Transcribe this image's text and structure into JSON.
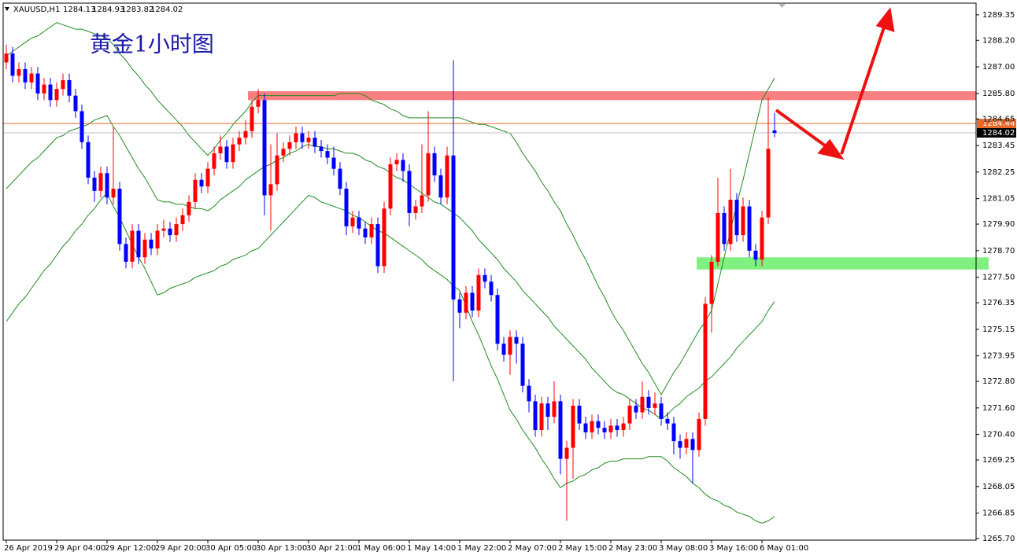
{
  "chart_data": {
    "type": "candlestick",
    "symbol": "XAUUSD,H1",
    "title": "黄金1小时图",
    "up_color": "#ff0000",
    "down_color": "#0000ff",
    "categories": [
      "26 Apr 2019",
      null,
      null,
      null,
      null,
      null,
      null,
      null,
      "29 Apr 04:00",
      null,
      null,
      null,
      null,
      null,
      null,
      null,
      "29 Apr 12:00",
      null,
      null,
      null,
      null,
      null,
      null,
      null,
      "29 Apr 20:00",
      null,
      null,
      null,
      null,
      null,
      null,
      null,
      "30 Apr 05:00",
      null,
      null,
      null,
      null,
      null,
      null,
      null,
      "30 Apr 13:00",
      null,
      null,
      null,
      null,
      null,
      null,
      null,
      "30 Apr 21:00",
      null,
      null,
      null,
      null,
      null,
      null,
      null,
      "1 May 06:00",
      null,
      null,
      null,
      null,
      null,
      null,
      null,
      "1 May 14:00",
      null,
      null,
      null,
      null,
      null,
      null,
      null,
      "1 May 22:00",
      null,
      null,
      null,
      null,
      null,
      null,
      null,
      "2 May 07:00",
      null,
      null,
      null,
      null,
      null,
      null,
      null,
      "2 May 15:00",
      null,
      null,
      null,
      null,
      null,
      null,
      null,
      "2 May 23:00",
      null,
      null,
      null,
      null,
      null,
      null,
      null,
      "3 May 08:00",
      null,
      null,
      null,
      null,
      null,
      null,
      null,
      "3 May 16:00",
      null,
      null,
      null,
      null,
      null,
      null,
      null,
      "6 May 01:00",
      null,
      null
    ],
    "open": [
      1287.2,
      1287.6,
      1286.6,
      1286.9,
      1286.3,
      1286.7,
      1285.8,
      1286.2,
      1285.5,
      1286.0,
      1286.4,
      1285.7,
      1285.0,
      1283.6,
      1282.0,
      1281.4,
      1282.2,
      1281.1,
      1281.5,
      1279.0,
      1278.2,
      1279.6,
      1278.4,
      1279.2,
      1278.8,
      1279.6,
      1279.7,
      1279.4,
      1279.9,
      1280.3,
      1280.9,
      1281.9,
      1281.6,
      1282.4,
      1283.1,
      1283.4,
      1282.7,
      1283.5,
      1283.8,
      1284.1,
      1285.2,
      1285.5,
      1281.2,
      1281.7,
      1283.0,
      1283.3,
      1283.6,
      1284.0,
      1283.6,
      1283.8,
      1283.4,
      1283.2,
      1282.9,
      1282.4,
      1281.5,
      1279.8,
      1280.2,
      1279.7,
      1279.3,
      1279.9,
      1278.0,
      1280.6,
      1282.6,
      1282.8,
      1282.3,
      1280.4,
      1280.7,
      1281.2,
      1283.1,
      1282.1,
      1281.1,
      1283.0,
      1276.5,
      1275.9,
      1276.8,
      1276.0,
      1277.6,
      1277.3,
      1276.7,
      1274.5,
      1274.0,
      1274.8,
      1274.5,
      1272.6,
      1271.9,
      1270.6,
      1271.8,
      1271.2,
      1271.9,
      1269.3,
      1269.8,
      1271.7,
      1270.9,
      1270.5,
      1271.0,
      1270.7,
      1270.5,
      1270.8,
      1270.6,
      1270.9,
      1271.7,
      1271.4,
      1272.1,
      1271.6,
      1271.8,
      1271.1,
      1270.9,
      1270.1,
      1269.8,
      1270.2,
      1269.7,
      1271.1,
      1276.3,
      1278.2,
      1280.4,
      1279.0,
      1281.0,
      1279.4,
      1280.7,
      1278.7,
      1278.3,
      1280.2,
      1284.13
    ],
    "high": [
      1288.0,
      1287.9,
      1287.2,
      1287.2,
      1287.0,
      1287.0,
      1286.5,
      1286.5,
      1286.3,
      1286.7,
      1286.7,
      1286.0,
      1285.3,
      1283.9,
      1282.3,
      1282.5,
      1282.5,
      1284.3,
      1281.8,
      1279.3,
      1279.9,
      1279.9,
      1279.5,
      1279.5,
      1279.9,
      1280.1,
      1280.0,
      1280.2,
      1280.6,
      1281.2,
      1282.2,
      1282.2,
      1282.7,
      1283.4,
      1283.9,
      1283.7,
      1283.8,
      1284.1,
      1284.6,
      1285.5,
      1286.0,
      1285.8,
      1283.5,
      1284.0,
      1283.6,
      1283.9,
      1284.3,
      1284.3,
      1284.1,
      1284.1,
      1283.7,
      1283.5,
      1283.4,
      1282.7,
      1281.8,
      1280.5,
      1280.5,
      1280.0,
      1280.2,
      1280.2,
      1280.9,
      1282.9,
      1283.1,
      1283.1,
      1282.6,
      1281.0,
      1283.5,
      1285.0,
      1283.4,
      1282.4,
      1283.4,
      1287.3,
      1276.8,
      1277.1,
      1277.1,
      1277.9,
      1277.9,
      1277.6,
      1277.0,
      1274.8,
      1275.1,
      1275.1,
      1274.8,
      1272.9,
      1272.2,
      1272.1,
      1272.1,
      1272.8,
      1272.2,
      1270.1,
      1272.0,
      1272.0,
      1271.2,
      1271.3,
      1271.3,
      1271.0,
      1271.1,
      1271.1,
      1271.2,
      1272.0,
      1272.0,
      1272.8,
      1272.4,
      1272.3,
      1272.1,
      1271.4,
      1271.2,
      1270.4,
      1270.5,
      1270.5,
      1271.4,
      1276.6,
      1278.5,
      1282.0,
      1280.7,
      1282.4,
      1281.3,
      1281.1,
      1281.0,
      1279.0,
      1280.5,
      1285.6,
      1284.93
    ],
    "low": [
      1286.9,
      1286.3,
      1286.3,
      1286.0,
      1286.0,
      1285.5,
      1285.5,
      1285.2,
      1285.2,
      1285.7,
      1285.4,
      1284.7,
      1283.3,
      1281.7,
      1280.9,
      1281.1,
      1280.8,
      1280.8,
      1278.7,
      1277.9,
      1277.9,
      1278.1,
      1278.1,
      1278.5,
      1278.5,
      1279.3,
      1279.1,
      1279.1,
      1279.6,
      1280.0,
      1280.6,
      1281.3,
      1281.3,
      1282.1,
      1282.8,
      1282.4,
      1282.4,
      1283.2,
      1283.5,
      1283.8,
      1284.9,
      1280.3,
      1279.6,
      1281.4,
      1282.7,
      1283.0,
      1283.3,
      1283.3,
      1283.3,
      1283.1,
      1282.9,
      1282.6,
      1282.1,
      1281.2,
      1279.4,
      1279.5,
      1279.4,
      1279.0,
      1279.0,
      1277.7,
      1277.7,
      1280.3,
      1282.3,
      1281.8,
      1279.8,
      1280.1,
      1280.4,
      1280.9,
      1281.8,
      1280.8,
      1280.8,
      1272.8,
      1275.2,
      1275.6,
      1275.7,
      1275.7,
      1277.0,
      1276.4,
      1274.2,
      1273.7,
      1273.1,
      1273.6,
      1272.3,
      1271.4,
      1270.3,
      1270.3,
      1270.6,
      1270.9,
      1268.6,
      1266.5,
      1268.4,
      1270.6,
      1270.2,
      1270.2,
      1270.4,
      1270.2,
      1270.2,
      1270.3,
      1270.3,
      1270.6,
      1271.1,
      1271.1,
      1271.3,
      1271.3,
      1270.8,
      1270.6,
      1269.5,
      1269.3,
      1269.5,
      1268.2,
      1269.4,
      1270.8,
      1275.0,
      1278.0,
      1278.7,
      1278.7,
      1279.1,
      1279.1,
      1278.4,
      1278.0,
      1278.0,
      1279.9,
      1283.82
    ],
    "close": [
      1287.6,
      1286.6,
      1286.9,
      1286.3,
      1286.7,
      1285.8,
      1286.2,
      1285.5,
      1286.0,
      1286.4,
      1285.7,
      1285.0,
      1283.6,
      1282.0,
      1281.4,
      1282.2,
      1281.1,
      1281.5,
      1279.0,
      1278.2,
      1279.6,
      1278.4,
      1279.2,
      1278.8,
      1279.6,
      1279.7,
      1279.4,
      1279.9,
      1280.3,
      1280.9,
      1281.9,
      1281.6,
      1282.4,
      1283.1,
      1283.4,
      1282.7,
      1283.5,
      1283.8,
      1284.1,
      1285.2,
      1285.5,
      1281.2,
      1281.7,
      1283.0,
      1283.3,
      1283.6,
      1284.0,
      1283.6,
      1283.8,
      1283.4,
      1283.2,
      1282.9,
      1282.4,
      1281.5,
      1279.8,
      1280.2,
      1279.7,
      1279.3,
      1279.9,
      1278.0,
      1280.6,
      1282.6,
      1282.8,
      1282.3,
      1280.4,
      1280.7,
      1281.2,
      1283.1,
      1282.1,
      1281.1,
      1283.0,
      1276.5,
      1275.9,
      1276.8,
      1276.0,
      1277.6,
      1277.3,
      1276.7,
      1274.5,
      1274.0,
      1274.8,
      1274.5,
      1272.6,
      1271.9,
      1270.6,
      1271.8,
      1271.2,
      1271.9,
      1269.3,
      1269.8,
      1271.7,
      1270.9,
      1270.5,
      1271.0,
      1270.7,
      1270.5,
      1270.8,
      1270.6,
      1270.9,
      1271.7,
      1271.4,
      1272.1,
      1271.6,
      1271.8,
      1271.1,
      1270.9,
      1270.1,
      1269.8,
      1270.2,
      1269.7,
      1271.1,
      1276.3,
      1278.2,
      1280.4,
      1279.0,
      1281.0,
      1279.4,
      1280.7,
      1278.7,
      1278.3,
      1280.2,
      1283.3,
      1284.02
    ],
    "bands": [
      {
        "color": "#1e8c1e",
        "values": [
          1287.5,
          1287.7,
          1287.9,
          1288.1,
          1288.3,
          1288.4,
          1288.6,
          1288.8,
          1289.0,
          1288.9,
          1288.8,
          1288.7,
          1288.7,
          1288.6,
          1288.5,
          1288.4,
          1288.3,
          1288.0,
          1287.6,
          1287.3,
          1286.9,
          1286.6,
          1286.2,
          1285.9,
          1285.5,
          1285.2,
          1284.9,
          1284.6,
          1284.3,
          1283.9,
          1283.6,
          1283.3,
          1283.0,
          1283.3,
          1283.7,
          1284.0,
          1284.4,
          1284.7,
          1285.0,
          1285.4,
          1285.7,
          1285.7,
          1285.7,
          1285.7,
          1285.7,
          1285.7,
          1285.7,
          1285.7,
          1285.7,
          1285.7,
          1285.7,
          1285.7,
          1285.7,
          1285.8,
          1285.8,
          1285.8,
          1285.8,
          1285.7,
          1285.5,
          1285.4,
          1285.3,
          1285.1,
          1285.0,
          1284.8,
          1284.7,
          1284.7,
          1284.7,
          1284.7,
          1284.7,
          1284.7,
          1284.7,
          1284.7,
          1284.7,
          1284.6,
          1284.5,
          1284.4,
          1284.4,
          1284.3,
          1284.2,
          1284.1,
          1284.0,
          1283.6,
          1283.1,
          1282.7,
          1282.3,
          1281.8,
          1281.4,
          1280.9,
          1280.5,
          1279.9,
          1279.4,
          1278.8,
          1278.3,
          1277.7,
          1277.1,
          1276.6,
          1276.0,
          1275.5,
          1275.1,
          1274.6,
          1274.1,
          1273.6,
          1273.2,
          1272.7,
          1272.2,
          1272.7,
          1273.2,
          1273.6,
          1274.1,
          1274.6,
          1275.1,
          1275.5,
          1276.0,
          1277.2,
          1278.4,
          1279.6,
          1280.8,
          1281.9,
          1283.1,
          1284.3,
          1285.5,
          1286.0,
          1286.5
        ]
      },
      {
        "color": "#1e8c1e",
        "values": [
          1281.5,
          1281.8,
          1282.1,
          1282.4,
          1282.7,
          1282.9,
          1283.2,
          1283.5,
          1283.8,
          1283.9,
          1284.1,
          1284.2,
          1284.3,
          1284.4,
          1284.6,
          1284.7,
          1284.8,
          1284.3,
          1283.9,
          1283.4,
          1282.9,
          1282.4,
          1282.0,
          1281.5,
          1281.0,
          1280.9,
          1280.9,
          1280.8,
          1280.8,
          1280.7,
          1280.6,
          1280.6,
          1280.5,
          1280.7,
          1281.0,
          1281.2,
          1281.4,
          1281.6,
          1281.9,
          1282.1,
          1282.3,
          1282.5,
          1282.6,
          1282.8,
          1282.9,
          1283.1,
          1283.2,
          1283.4,
          1283.5,
          1283.4,
          1283.4,
          1283.3,
          1283.3,
          1283.2,
          1283.1,
          1283.1,
          1283.0,
          1282.8,
          1282.7,
          1282.5,
          1282.4,
          1282.2,
          1282.0,
          1281.9,
          1281.7,
          1281.5,
          1281.3,
          1281.1,
          1280.9,
          1280.8,
          1280.6,
          1280.4,
          1280.2,
          1279.9,
          1279.6,
          1279.2,
          1278.9,
          1278.6,
          1278.3,
          1277.9,
          1277.6,
          1277.3,
          1276.9,
          1276.6,
          1276.3,
          1276.0,
          1275.7,
          1275.3,
          1275.0,
          1274.7,
          1274.4,
          1274.1,
          1273.8,
          1273.4,
          1273.1,
          1272.8,
          1272.5,
          1272.3,
          1272.2,
          1272.0,
          1271.8,
          1271.6,
          1271.5,
          1271.3,
          1271.1,
          1271.3,
          1271.6,
          1271.8,
          1272.1,
          1272.3,
          1272.5,
          1272.8,
          1273.0,
          1273.3,
          1273.6,
          1273.9,
          1274.3,
          1274.6,
          1274.9,
          1275.2,
          1275.5,
          1276.0,
          1276.4
        ]
      },
      {
        "color": "#1e8c1e",
        "values": [
          1275.5,
          1275.9,
          1276.3,
          1276.6,
          1277.0,
          1277.4,
          1277.8,
          1278.1,
          1278.5,
          1278.9,
          1279.2,
          1279.6,
          1279.9,
          1280.3,
          1280.6,
          1281.0,
          1281.3,
          1280.7,
          1280.2,
          1279.6,
          1279.0,
          1278.4,
          1277.9,
          1277.3,
          1276.7,
          1276.8,
          1277.0,
          1277.1,
          1277.2,
          1277.3,
          1277.5,
          1277.6,
          1277.7,
          1277.8,
          1278.0,
          1278.1,
          1278.3,
          1278.4,
          1278.5,
          1278.7,
          1278.8,
          1279.1,
          1279.4,
          1279.7,
          1280.0,
          1280.3,
          1280.6,
          1280.9,
          1281.2,
          1281.1,
          1280.9,
          1280.8,
          1280.7,
          1280.6,
          1280.5,
          1280.3,
          1280.2,
          1280.0,
          1279.8,
          1279.6,
          1279.5,
          1279.3,
          1279.1,
          1278.9,
          1278.7,
          1278.5,
          1278.3,
          1278.0,
          1277.8,
          1277.6,
          1277.4,
          1277.1,
          1276.9,
          1276.2,
          1275.5,
          1274.9,
          1274.2,
          1273.5,
          1272.9,
          1272.2,
          1271.5,
          1271.1,
          1270.6,
          1270.2,
          1269.8,
          1269.3,
          1268.9,
          1268.4,
          1268.0,
          1268.2,
          1268.3,
          1268.5,
          1268.6,
          1268.8,
          1268.9,
          1269.1,
          1269.2,
          1269.2,
          1269.3,
          1269.3,
          1269.3,
          1269.3,
          1269.4,
          1269.4,
          1269.4,
          1269.2,
          1268.9,
          1268.7,
          1268.5,
          1268.2,
          1268.0,
          1267.7,
          1267.5,
          1267.4,
          1267.2,
          1267.1,
          1266.9,
          1266.8,
          1266.7,
          1266.5,
          1266.4,
          1266.5,
          1266.7
        ]
      }
    ],
    "zones": [
      {
        "color": "#f88080",
        "range": [
          1285.5,
          1285.9
        ]
      },
      {
        "color": "#80f080",
        "range": [
          1277.85,
          1278.4
        ]
      }
    ],
    "price_lines": [
      {
        "value": 1284.44,
        "color": "#e8692a"
      },
      {
        "value": 1284.02,
        "color": "#c0c0c0"
      }
    ],
    "ylim": [
      1265.63,
      1290.02
    ],
    "yticks": [
      1289.35,
      {
        "value": 1288.2,
        "label": "1288.20"
      },
      {
        "value": 1287,
        "label": "1287.00"
      },
      {
        "value": 1285.8,
        "label": "1285.80"
      },
      1284.65,
      1283.45,
      1282.25,
      1281.05,
      {
        "value": 1279.9,
        "label": "1279.90"
      },
      {
        "value": 1278.7,
        "label": "1278.70"
      },
      {
        "value": 1277.5,
        "label": "1277.50"
      },
      1276.35,
      1275.15,
      1273.95,
      {
        "value": 1272.8,
        "label": "1272.80"
      },
      {
        "value": 1271.6,
        "label": "1271.60"
      },
      {
        "value": 1270.4,
        "label": "1270.40"
      },
      1269.25,
      1268.05,
      1266.85,
      {
        "value": 1265.7,
        "label": "1265.70"
      }
    ]
  }
}
